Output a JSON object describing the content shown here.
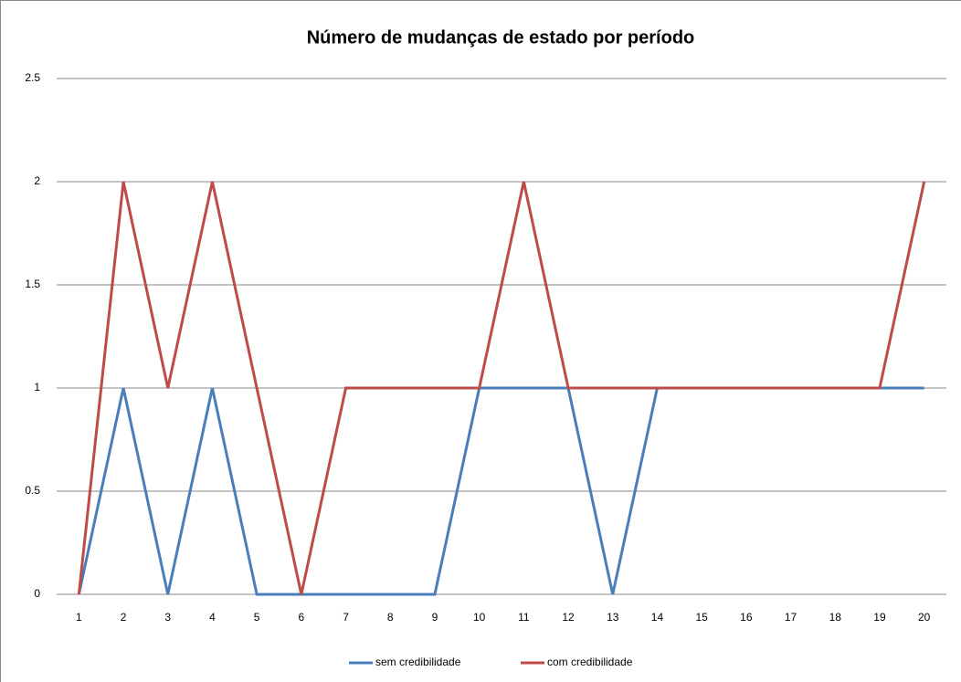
{
  "chart_data": {
    "type": "line",
    "title": "Número de mudanças de estado por período",
    "categories": [
      "1",
      "2",
      "3",
      "4",
      "5",
      "6",
      "7",
      "8",
      "9",
      "10",
      "11",
      "12",
      "13",
      "14",
      "15",
      "16",
      "17",
      "18",
      "19",
      "20"
    ],
    "series": [
      {
        "name": "sem credibilidade",
        "color": "#4a7ebb",
        "values": [
          0,
          1,
          0,
          1,
          0,
          0,
          0,
          0,
          0,
          1,
          1,
          1,
          0,
          1,
          1,
          1,
          1,
          1,
          1,
          1
        ]
      },
      {
        "name": "com credibilidade",
        "color": "#be4b48",
        "values": [
          0,
          2,
          1,
          2,
          1,
          0,
          1,
          1,
          1,
          1,
          2,
          1,
          1,
          1,
          1,
          1,
          1,
          1,
          1,
          2
        ]
      }
    ],
    "ylim": [
      0,
      2.5
    ],
    "yticks": [
      0,
      0.5,
      1,
      1.5,
      2,
      2.5
    ],
    "grid": true,
    "legend": "bottom"
  }
}
